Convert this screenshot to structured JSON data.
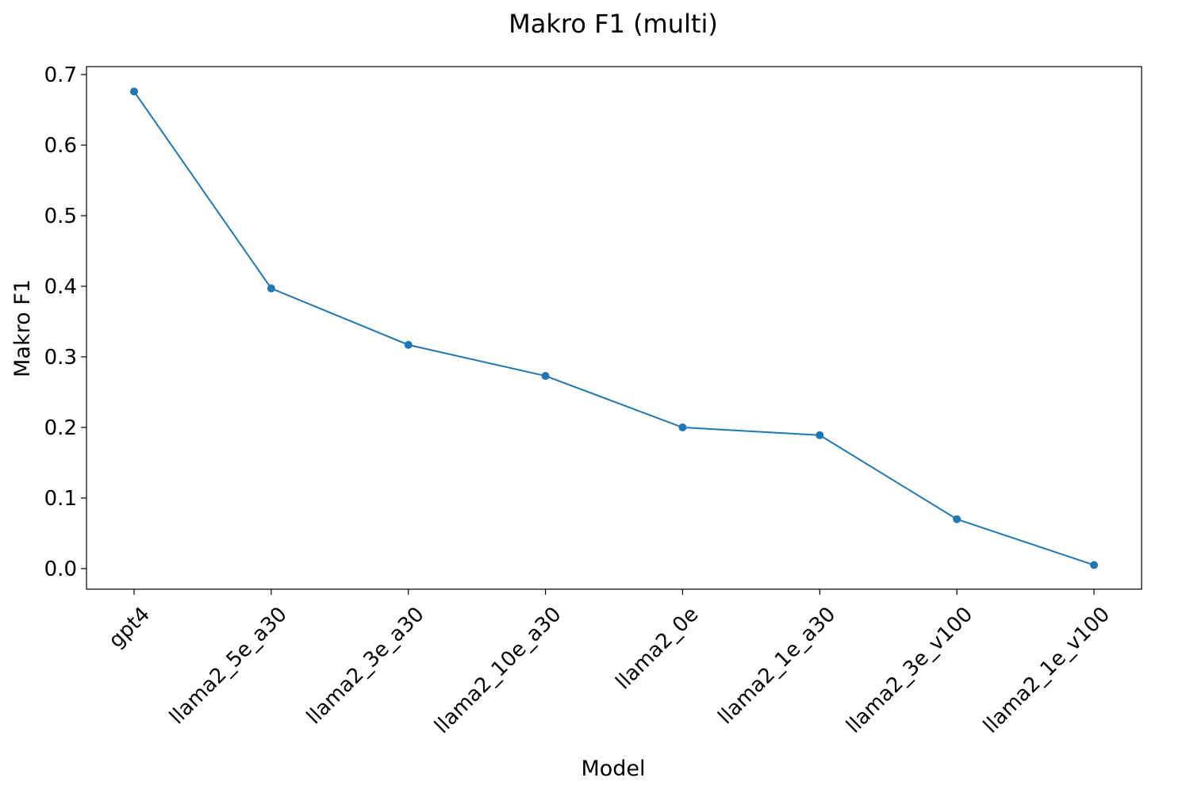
{
  "chart_data": {
    "type": "line",
    "title": "Makro F1 (multi)",
    "xlabel": "Model",
    "ylabel": "Makro F1",
    "categories": [
      "gpt4",
      "llama2_5e_a30",
      "llama2_3e_a30",
      "llama2_10e_a30",
      "llama2_0e",
      "llama2_1e_a30",
      "llama2_3e_v100",
      "llama2_1e_v100"
    ],
    "series": [
      {
        "values": [
          0.676,
          0.397,
          0.317,
          0.273,
          0.2,
          0.189,
          0.07,
          0.005
        ],
        "color": "#1f77b4",
        "marker": "circle"
      }
    ],
    "yticks": [
      "0.0",
      "0.1",
      "0.2",
      "0.3",
      "0.4",
      "0.5",
      "0.6",
      "0.7"
    ],
    "ylim": [
      -0.029,
      0.711
    ],
    "grid": false,
    "legend": "none"
  }
}
